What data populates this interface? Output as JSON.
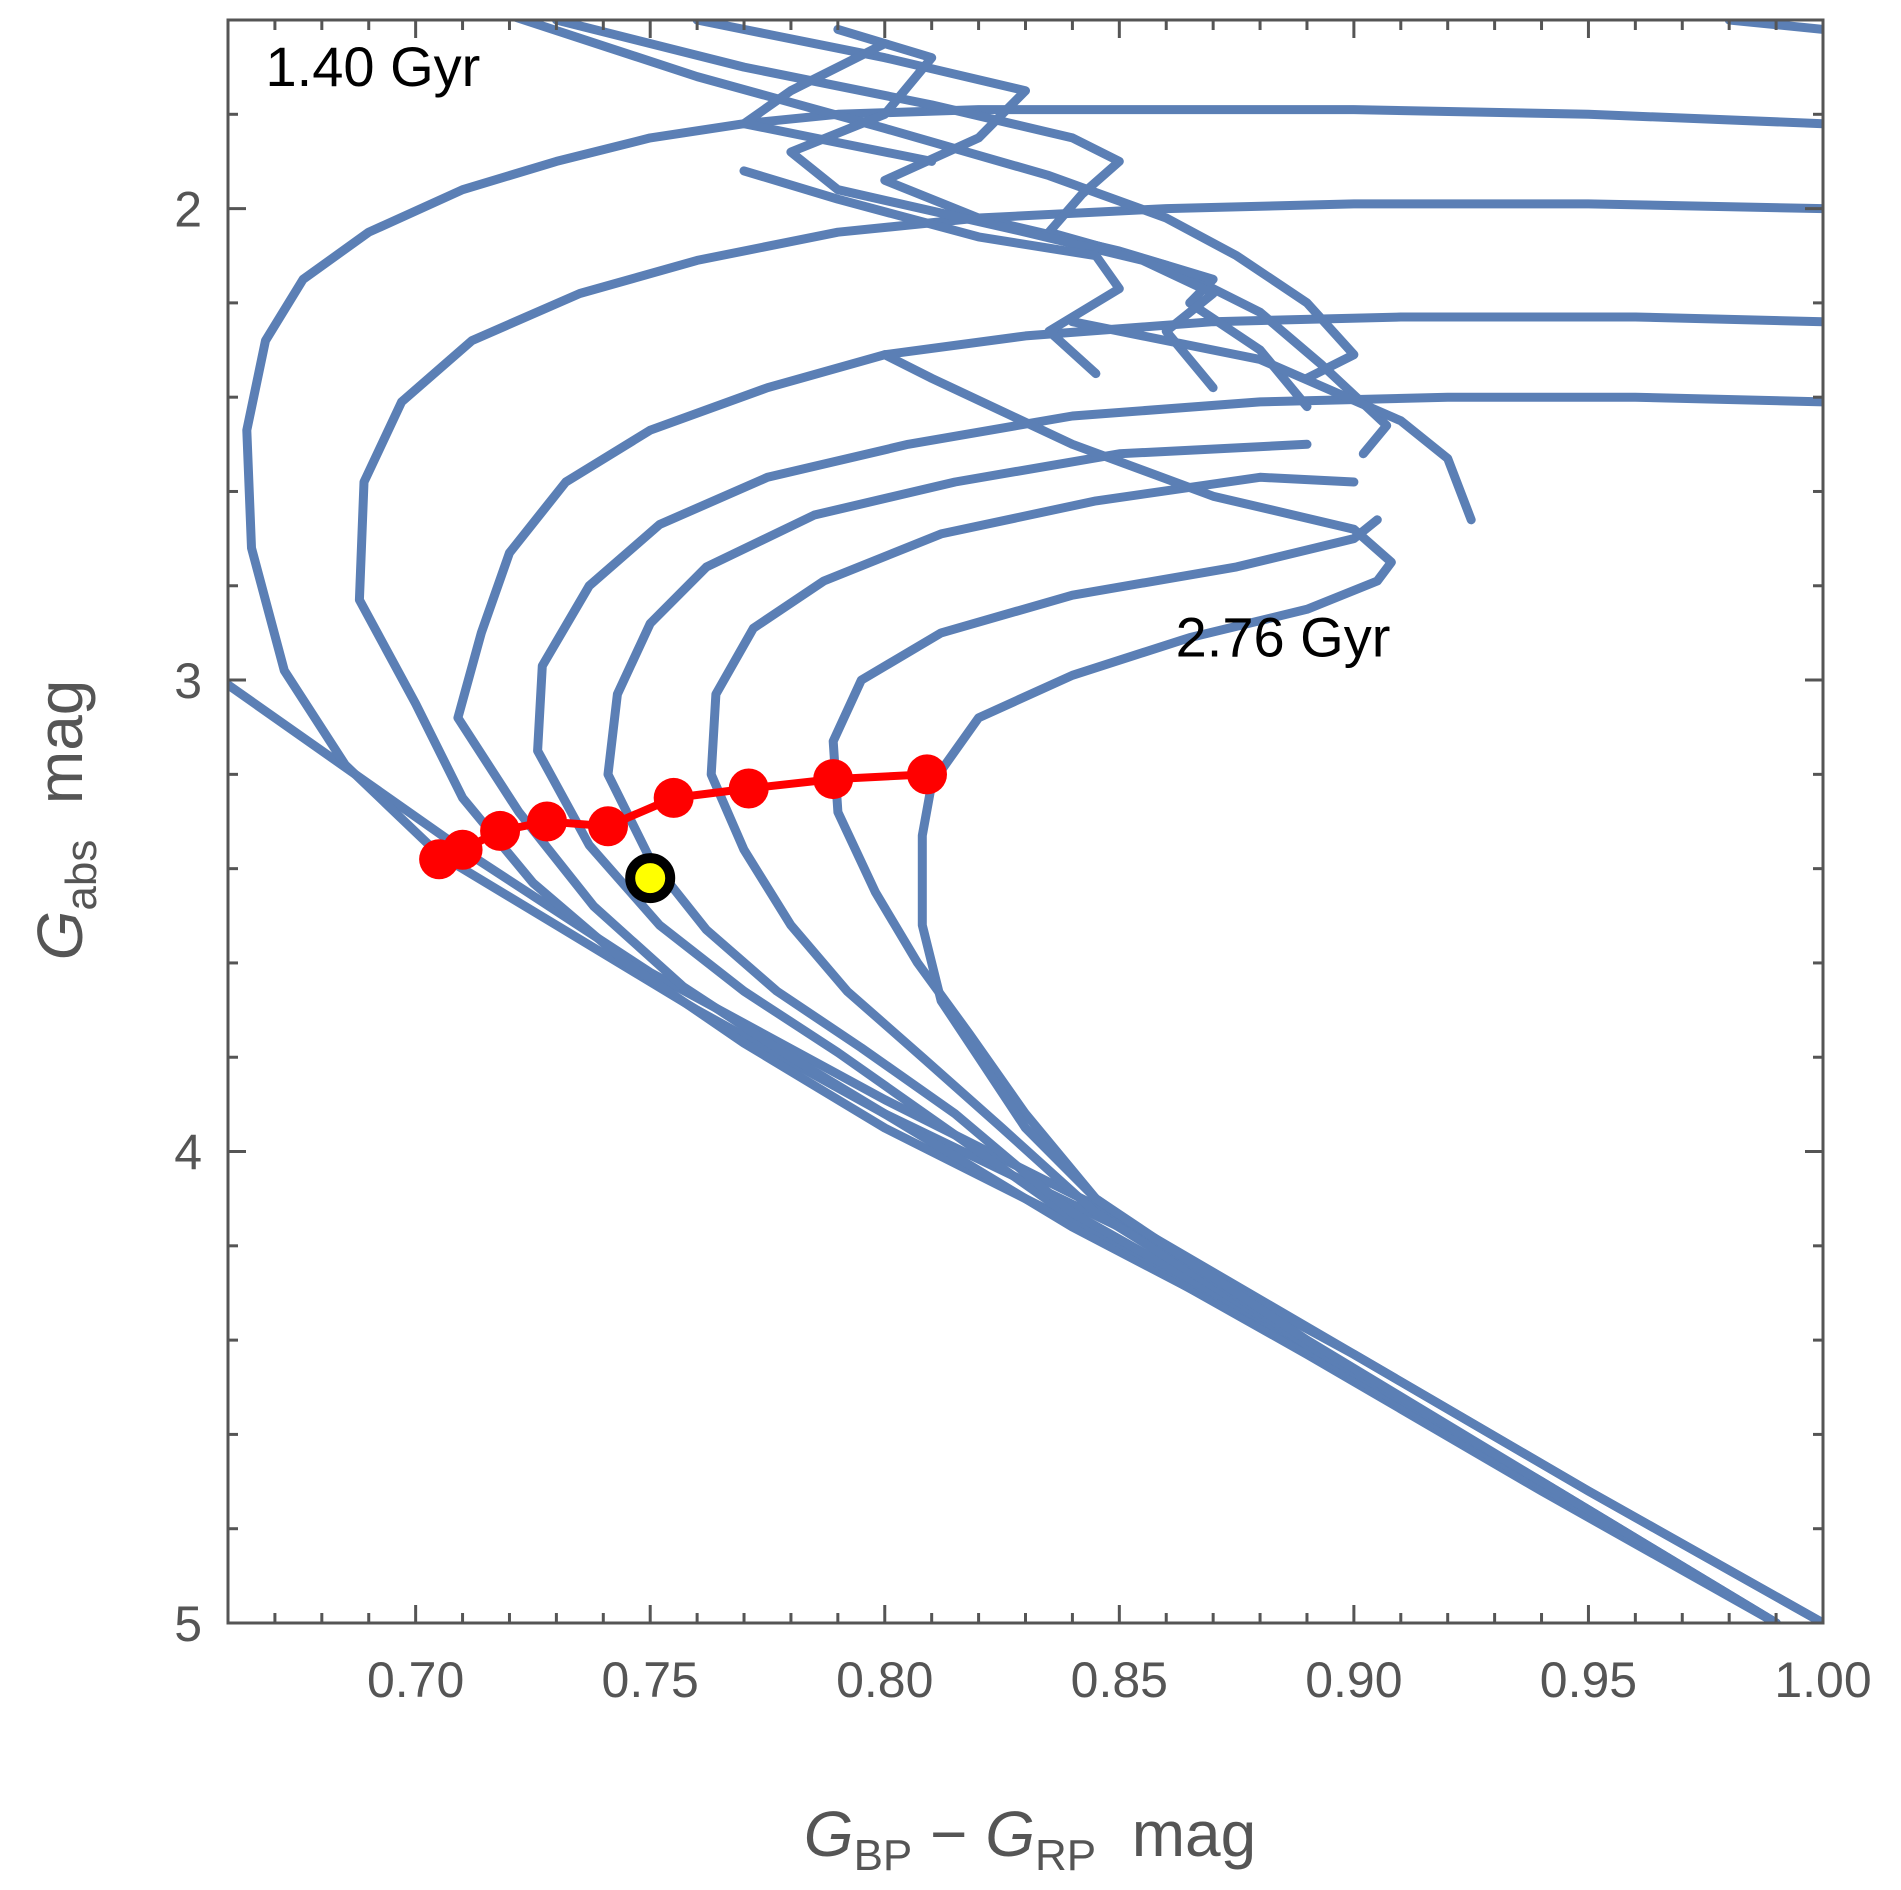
{
  "chart_data": {
    "type": "line",
    "title": "",
    "xlabel": "G_BP − G_RP mag",
    "ylabel": "G_abs mag",
    "xlim": [
      0.66,
      1.0
    ],
    "ylim": [
      5.0,
      1.6
    ],
    "y_inverted": true,
    "grid": false,
    "x_ticks": [
      {
        "value": 0.7,
        "label": "0.70"
      },
      {
        "value": 0.75,
        "label": "0.75"
      },
      {
        "value": 0.8,
        "label": "0.80"
      },
      {
        "value": 0.85,
        "label": "0.85"
      },
      {
        "value": 0.9,
        "label": "0.90"
      },
      {
        "value": 0.95,
        "label": "0.95"
      },
      {
        "value": 1.0,
        "label": "1.00"
      }
    ],
    "y_ticks": [
      {
        "value": 2,
        "label": "2"
      },
      {
        "value": 3,
        "label": "3"
      },
      {
        "value": 4,
        "label": "4"
      },
      {
        "value": 5,
        "label": "5"
      }
    ],
    "axis_title_x": {
      "main1": "G",
      "sub1": "BP",
      "op": " − ",
      "main2": "G",
      "sub2": "RP",
      "unit": "  mag"
    },
    "axis_title_y": {
      "main": "G",
      "sub": "abs",
      "unit": "  mag"
    },
    "annotations": [
      {
        "text": "1.40 Gyr",
        "x": 0.668,
        "y": 1.74
      },
      {
        "text": "2.76 Gyr",
        "x": 0.862,
        "y": 2.95
      }
    ],
    "colors": {
      "isochrone": "#5b7fb5",
      "trend": "#ff0000",
      "star_fill": "#ffff00",
      "star_edge": "#000000"
    },
    "series": [
      {
        "name": "isochrone-1",
        "points": [
          [
            0.66,
            3.01
          ],
          [
            0.69,
            3.22
          ],
          [
            0.71,
            3.36
          ],
          [
            0.75,
            3.62
          ],
          [
            0.8,
            3.89
          ],
          [
            0.85,
            4.14
          ],
          [
            0.9,
            4.43
          ],
          [
            0.95,
            4.72
          ],
          [
            1.0,
            5.0
          ]
        ]
      },
      {
        "name": "isochrone-2",
        "points": [
          [
            1.0,
            5.0
          ],
          [
            0.95,
            4.72
          ],
          [
            0.9,
            4.43
          ],
          [
            0.85,
            4.16
          ],
          [
            0.8,
            3.92
          ],
          [
            0.76,
            3.7
          ],
          [
            0.73,
            3.52
          ],
          [
            0.705,
            3.37
          ],
          [
            0.685,
            3.18
          ],
          [
            0.672,
            2.98
          ],
          [
            0.665,
            2.72
          ],
          [
            0.664,
            2.47
          ],
          [
            0.668,
            2.28
          ],
          [
            0.676,
            2.15
          ],
          [
            0.69,
            2.05
          ],
          [
            0.71,
            1.96
          ],
          [
            0.73,
            1.9
          ],
          [
            0.75,
            1.85
          ],
          [
            0.77,
            1.82
          ],
          [
            0.79,
            1.8
          ],
          [
            0.82,
            1.79
          ],
          [
            0.86,
            1.79
          ],
          [
            0.9,
            1.79
          ],
          [
            0.95,
            1.8
          ],
          [
            1.0,
            1.82
          ]
        ]
      },
      {
        "name": "isochrone-3",
        "points": [
          [
            0.99,
            5.0
          ],
          [
            0.94,
            4.72
          ],
          [
            0.89,
            4.43
          ],
          [
            0.84,
            4.15
          ],
          [
            0.8,
            3.95
          ],
          [
            0.77,
            3.77
          ],
          [
            0.745,
            3.6
          ],
          [
            0.725,
            3.43
          ],
          [
            0.71,
            3.25
          ],
          [
            0.7,
            3.05
          ],
          [
            0.688,
            2.83
          ],
          [
            0.689,
            2.58
          ],
          [
            0.697,
            2.41
          ],
          [
            0.712,
            2.28
          ],
          [
            0.735,
            2.18
          ],
          [
            0.76,
            2.11
          ],
          [
            0.79,
            2.05
          ],
          [
            0.82,
            2.02
          ],
          [
            0.86,
            2.0
          ],
          [
            0.9,
            1.99
          ],
          [
            0.95,
            1.99
          ],
          [
            1.0,
            2.0
          ]
        ]
      },
      {
        "name": "isochrone-4",
        "points": [
          [
            0.99,
            5.0
          ],
          [
            0.94,
            4.71
          ],
          [
            0.89,
            4.42
          ],
          [
            0.84,
            4.16
          ],
          [
            0.805,
            3.95
          ],
          [
            0.78,
            3.8
          ],
          [
            0.757,
            3.65
          ],
          [
            0.738,
            3.48
          ],
          [
            0.722,
            3.28
          ],
          [
            0.709,
            3.08
          ],
          [
            0.714,
            2.9
          ],
          [
            0.72,
            2.73
          ],
          [
            0.732,
            2.58
          ],
          [
            0.75,
            2.47
          ],
          [
            0.775,
            2.38
          ],
          [
            0.8,
            2.31
          ],
          [
            0.83,
            2.27
          ],
          [
            0.87,
            2.24
          ],
          [
            0.91,
            2.23
          ],
          [
            0.96,
            2.23
          ],
          [
            1.0,
            2.24
          ]
        ]
      },
      {
        "name": "isochrone-5",
        "points": [
          [
            0.99,
            5.0
          ],
          [
            0.94,
            4.7
          ],
          [
            0.89,
            4.41
          ],
          [
            0.84,
            4.14
          ],
          [
            0.81,
            3.93
          ],
          [
            0.79,
            3.79
          ],
          [
            0.77,
            3.66
          ],
          [
            0.752,
            3.52
          ],
          [
            0.737,
            3.35
          ],
          [
            0.726,
            3.15
          ],
          [
            0.727,
            2.97
          ],
          [
            0.737,
            2.8
          ],
          [
            0.752,
            2.67
          ],
          [
            0.775,
            2.57
          ],
          [
            0.805,
            2.5
          ],
          [
            0.84,
            2.44
          ],
          [
            0.88,
            2.41
          ],
          [
            0.92,
            2.4
          ],
          [
            0.96,
            2.4
          ],
          [
            1.0,
            2.41
          ]
        ]
      },
      {
        "name": "isochrone-6",
        "points": [
          [
            0.99,
            5.0
          ],
          [
            0.94,
            4.7
          ],
          [
            0.89,
            4.41
          ],
          [
            0.84,
            4.13
          ],
          [
            0.815,
            3.92
          ],
          [
            0.795,
            3.78
          ],
          [
            0.777,
            3.66
          ],
          [
            0.762,
            3.53
          ],
          [
            0.75,
            3.38
          ],
          [
            0.741,
            3.2
          ],
          [
            0.743,
            3.03
          ],
          [
            0.75,
            2.88
          ],
          [
            0.762,
            2.76
          ],
          [
            0.785,
            2.65
          ],
          [
            0.815,
            2.58
          ],
          [
            0.85,
            2.52
          ],
          [
            0.89,
            2.5
          ]
        ]
      },
      {
        "name": "isochrone-7",
        "points": [
          [
            0.99,
            5.0
          ],
          [
            0.94,
            4.7
          ],
          [
            0.89,
            4.41
          ],
          [
            0.845,
            4.13
          ],
          [
            0.825,
            3.95
          ],
          [
            0.808,
            3.8
          ],
          [
            0.792,
            3.66
          ],
          [
            0.78,
            3.52
          ],
          [
            0.77,
            3.36
          ],
          [
            0.763,
            3.2
          ],
          [
            0.764,
            3.03
          ],
          [
            0.772,
            2.89
          ],
          [
            0.787,
            2.79
          ],
          [
            0.812,
            2.69
          ],
          [
            0.845,
            2.62
          ],
          [
            0.88,
            2.57
          ],
          [
            0.9,
            2.58
          ]
        ]
      },
      {
        "name": "isochrone-8",
        "points": [
          [
            0.99,
            5.0
          ],
          [
            0.94,
            4.7
          ],
          [
            0.89,
            4.41
          ],
          [
            0.845,
            4.1
          ],
          [
            0.83,
            3.92
          ],
          [
            0.818,
            3.75
          ],
          [
            0.807,
            3.6
          ],
          [
            0.798,
            3.45
          ],
          [
            0.79,
            3.28
          ],
          [
            0.789,
            3.13
          ],
          [
            0.795,
            3.0
          ],
          [
            0.812,
            2.9
          ],
          [
            0.84,
            2.82
          ],
          [
            0.875,
            2.76
          ],
          [
            0.9,
            2.7
          ],
          [
            0.905,
            2.66
          ]
        ]
      },
      {
        "name": "isochrone-9",
        "points": [
          [
            0.99,
            5.0
          ],
          [
            0.94,
            4.7
          ],
          [
            0.89,
            4.4
          ],
          [
            0.845,
            4.1
          ],
          [
            0.83,
            3.95
          ],
          [
            0.82,
            3.8
          ],
          [
            0.812,
            3.68
          ],
          [
            0.808,
            3.52
          ],
          [
            0.808,
            3.33
          ],
          [
            0.81,
            3.22
          ],
          [
            0.82,
            3.08
          ],
          [
            0.84,
            2.99
          ],
          [
            0.865,
            2.91
          ],
          [
            0.89,
            2.85
          ],
          [
            0.905,
            2.79
          ],
          [
            0.908,
            2.75
          ],
          [
            0.9,
            2.68
          ],
          [
            0.87,
            2.61
          ],
          [
            0.84,
            2.5
          ],
          [
            0.81,
            2.36
          ],
          [
            0.8,
            2.31
          ]
        ]
      },
      {
        "name": "isochrone-upper-a",
        "points": [
          [
            0.717,
            1.58
          ],
          [
            0.76,
            1.72
          ],
          [
            0.8,
            1.83
          ],
          [
            0.835,
            1.93
          ],
          [
            0.86,
            2.02
          ],
          [
            0.875,
            2.1
          ],
          [
            0.89,
            2.2
          ],
          [
            0.9,
            2.31
          ],
          [
            0.89,
            2.36
          ]
        ]
      },
      {
        "name": "isochrone-upper-b",
        "points": [
          [
            0.73,
            1.6
          ],
          [
            0.77,
            1.7
          ],
          [
            0.81,
            1.78
          ],
          [
            0.84,
            1.85
          ],
          [
            0.85,
            1.9
          ],
          [
            0.842,
            1.97
          ],
          [
            0.835,
            2.05
          ],
          [
            0.86,
            2.12
          ],
          [
            0.88,
            2.22
          ],
          [
            0.893,
            2.33
          ],
          [
            0.907,
            2.46
          ],
          [
            0.902,
            2.52
          ]
        ]
      },
      {
        "name": "isochrone-upper-c",
        "points": [
          [
            0.76,
            1.6
          ],
          [
            0.8,
            1.68
          ],
          [
            0.83,
            1.75
          ],
          [
            0.82,
            1.85
          ],
          [
            0.8,
            1.94
          ],
          [
            0.82,
            2.02
          ],
          [
            0.85,
            2.09
          ],
          [
            0.87,
            2.15
          ],
          [
            0.865,
            2.2
          ],
          [
            0.88,
            2.3
          ],
          [
            0.89,
            2.42
          ]
        ]
      },
      {
        "name": "isochrone-upper-d",
        "points": [
          [
            0.79,
            1.62
          ],
          [
            0.81,
            1.68
          ],
          [
            0.8,
            1.8
          ],
          [
            0.78,
            1.88
          ],
          [
            0.79,
            1.96
          ],
          [
            0.83,
            2.05
          ],
          [
            0.855,
            2.11
          ],
          [
            0.87,
            2.18
          ],
          [
            0.86,
            2.26
          ],
          [
            0.87,
            2.38
          ]
        ]
      },
      {
        "name": "isochrone-upper-e",
        "points": [
          [
            0.77,
            1.92
          ],
          [
            0.79,
            1.98
          ],
          [
            0.82,
            2.06
          ],
          [
            0.845,
            2.1
          ],
          [
            0.85,
            2.17
          ],
          [
            0.835,
            2.26
          ],
          [
            0.845,
            2.35
          ]
        ]
      },
      {
        "name": "isochrone-upper-f",
        "points": [
          [
            0.8,
            1.65
          ],
          [
            0.78,
            1.75
          ],
          [
            0.77,
            1.82
          ],
          [
            0.79,
            1.86
          ],
          [
            0.81,
            1.9
          ]
        ]
      },
      {
        "name": "isochrone-upper-g",
        "points": [
          [
            0.84,
            2.24
          ],
          [
            0.88,
            2.32
          ],
          [
            0.91,
            2.45
          ],
          [
            0.92,
            2.53
          ],
          [
            0.925,
            2.66
          ]
        ]
      },
      {
        "name": "isochrone-upper-right",
        "points": [
          [
            0.98,
            1.6
          ],
          [
            1.0,
            1.62
          ]
        ]
      }
    ],
    "trend": {
      "name": "turnoff-sequence",
      "points": [
        [
          0.705,
          3.38
        ],
        [
          0.71,
          3.36
        ],
        [
          0.718,
          3.32
        ],
        [
          0.728,
          3.3
        ],
        [
          0.741,
          3.31
        ],
        [
          0.755,
          3.25
        ],
        [
          0.771,
          3.23
        ],
        [
          0.789,
          3.21
        ],
        [
          0.809,
          3.2
        ]
      ]
    },
    "star": {
      "name": "observed-star",
      "x": 0.75,
      "y": 3.42
    }
  }
}
